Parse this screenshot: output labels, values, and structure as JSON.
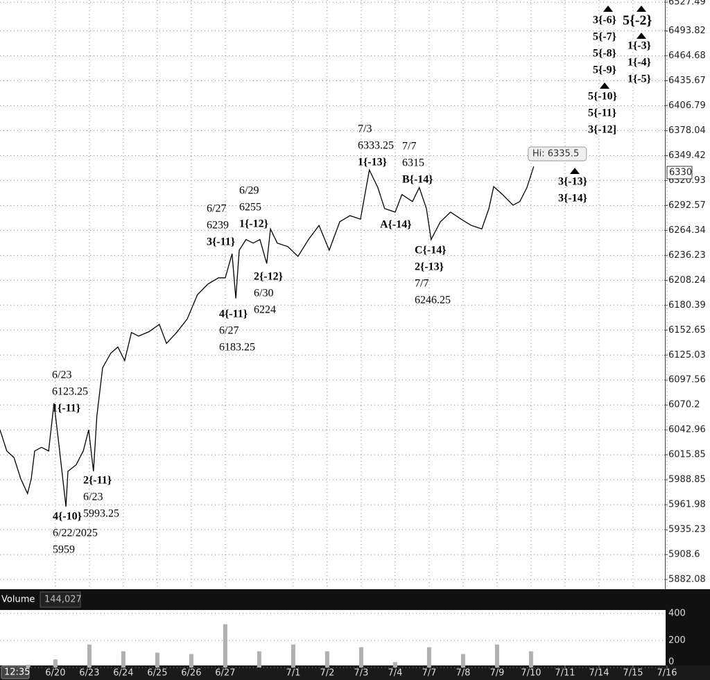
{
  "chart_data": {
    "type": "line",
    "log_scale": true,
    "grid": true,
    "color": "#000000",
    "x": [
      -1.63,
      -1.43,
      -1.22,
      -1.02,
      -0.82,
      -0.71,
      -0.61,
      -0.41,
      -0.2,
      -0.04,
      0.1,
      0.31,
      0.37,
      0.61,
      0.82,
      0.98,
      1.12,
      1.22,
      1.39,
      1.63,
      1.84,
      2.04,
      2.24,
      2.45,
      2.76,
      3.06,
      3.27,
      3.57,
      3.88,
      4.18,
      4.49,
      4.8,
      5.0,
      5.2,
      5.31,
      5.41,
      5.61,
      5.82,
      6.02,
      6.22,
      6.33,
      6.53,
      6.84,
      7.14,
      7.45,
      7.76,
      8.06,
      8.37,
      8.67,
      8.98,
      9.24,
      9.49,
      9.69,
      10.0,
      10.2,
      10.51,
      10.71,
      10.92,
      11.06,
      11.33,
      11.63,
      11.94,
      12.24,
      12.55,
      12.76,
      12.9,
      13.16,
      13.47,
      13.67,
      13.88,
      14.08
    ],
    "values": [
      6043,
      6020,
      6013,
      5990,
      5974,
      5990,
      6020,
      6024,
      6020,
      6072,
      6028,
      5960,
      5998,
      6005,
      6020,
      6043,
      5998,
      6058,
      6111,
      6127,
      6134,
      6119,
      6150,
      6146,
      6151,
      6159,
      6138,
      6150,
      6165,
      6192,
      6204,
      6211,
      6211,
      6238,
      6188,
      6242,
      6254,
      6250,
      6254,
      6227,
      6266,
      6250,
      6246,
      6235,
      6254,
      6270,
      6242,
      6274,
      6281,
      6277,
      6333,
      6313,
      6289,
      6285,
      6305,
      6297,
      6313,
      6289,
      6254,
      6274,
      6285,
      6277,
      6270,
      6266,
      6289,
      6314,
      6305,
      6293,
      6297,
      6313,
      6337
    ],
    "xlim": [
      -1.63,
      17.92
    ],
    "xticks": [
      {
        "value": 0,
        "label": "6/20"
      },
      {
        "value": 1,
        "label": "6/23"
      },
      {
        "value": 2,
        "label": "6/24"
      },
      {
        "value": 3,
        "label": "6/25"
      },
      {
        "value": 4,
        "label": "6/26"
      },
      {
        "value": 5,
        "label": "6/27"
      },
      {
        "value": 7,
        "label": "7/1"
      },
      {
        "value": 8,
        "label": "7/2"
      },
      {
        "value": 9,
        "label": "7/3"
      },
      {
        "value": 10,
        "label": "7/4"
      },
      {
        "value": 11,
        "label": "7/7"
      },
      {
        "value": 12,
        "label": "7/8"
      },
      {
        "value": 13,
        "label": "7/9"
      },
      {
        "value": 14,
        "label": "7/10"
      },
      {
        "value": 15,
        "label": "7/11"
      },
      {
        "value": 16,
        "label": "7/14"
      },
      {
        "value": 17,
        "label": "7/15"
      },
      {
        "value": 18,
        "label": "7/16"
      }
    ],
    "ylim": [
      5873.3,
      6530.1
    ],
    "yticks": [
      6527.49,
      6493.82,
      6464.68,
      6435.67,
      6406.79,
      6378.04,
      6349.42,
      6320.93,
      6292.57,
      6264.34,
      6236.23,
      6208.24,
      6180.39,
      6152.65,
      6125.03,
      6097.56,
      6070.2,
      6042.96,
      6015.85,
      5988.85,
      5961.98,
      5935.23,
      5908.6,
      5882.08
    ],
    "last_price": 6330,
    "high": {
      "value": 6335.5,
      "label": "Hi: 6335.5"
    },
    "annotations": [
      [
        "6/23",
        "6123.25",
        "1{-11}"
      ],
      [
        "2{-11}",
        "6/23",
        "5993.25"
      ],
      [
        "4{-10}",
        "6/22/2025",
        "5959"
      ],
      [
        "6/27",
        "6239",
        "3{-11}"
      ],
      [
        "6/29",
        "6255",
        "1{-12}"
      ],
      [
        "2{-12}",
        "6/30",
        "6224"
      ],
      [
        "4{-11}",
        "6/27",
        "6183.25"
      ],
      [
        "7/3",
        "6333.25",
        "1{-13}"
      ],
      [
        "7/7",
        "6315",
        "B{-14}"
      ],
      [
        "A{-14}"
      ],
      [
        "C{-14}",
        "2{-13}",
        "7/7",
        "6246.25"
      ],
      [
        "3{-13}",
        "3{-14}"
      ],
      [
        "5{-10}",
        "5{-11}",
        "3{-12]"
      ],
      [
        "3{-6}",
        "5{-7}",
        "5{-8}",
        "5{-9}"
      ],
      [
        "5{-2}"
      ],
      [
        "1{-3}",
        "1{-4}",
        "1{-5}"
      ]
    ],
    "volume": {
      "label": "Volume",
      "total": "144,027",
      "color": "#b0b0b0",
      "x": [
        -0.8,
        0,
        1,
        2,
        3,
        4,
        5,
        6,
        7,
        8,
        9,
        10,
        11,
        12,
        13,
        14
      ],
      "values": [
        20,
        60,
        170,
        120,
        110,
        100,
        320,
        120,
        170,
        120,
        150,
        40,
        150,
        100,
        170,
        120
      ],
      "ylim": [
        0,
        425
      ],
      "yticks": [
        400,
        200,
        0
      ]
    },
    "time": "12:35"
  }
}
